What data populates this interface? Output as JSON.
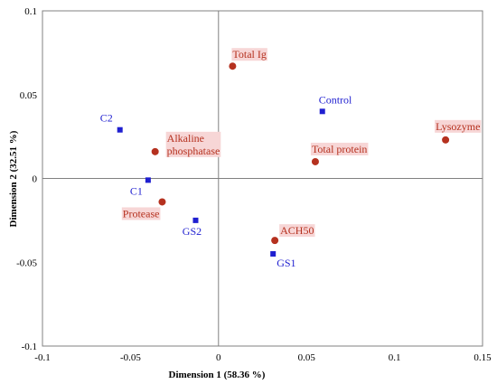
{
  "chart_data": {
    "type": "scatter",
    "title": "",
    "xlabel": "Dimension 1 (58.36 %)",
    "ylabel": "Dimension 2 (32.51 %)",
    "xlim": [
      -0.1,
      0.15
    ],
    "ylim": [
      -0.1,
      0.1
    ],
    "xticks": [
      "-0.1",
      "-0.05",
      "0",
      "0.05",
      "0.1",
      "0.15"
    ],
    "yticks": [
      "-0.1",
      "-0.05",
      "0",
      "0.05",
      "0.1"
    ],
    "grid": false,
    "legend": "none",
    "series": [
      {
        "color": "#1f1fd0",
        "marker": "square",
        "points": [
          {
            "label": "C2",
            "x": -0.056,
            "y": 0.029
          },
          {
            "label": "C1",
            "x": -0.04,
            "y": -0.001
          },
          {
            "label": "GS2",
            "x": -0.013,
            "y": -0.025
          },
          {
            "label": "GS1",
            "x": 0.031,
            "y": -0.045
          },
          {
            "label": "Control",
            "x": 0.059,
            "y": 0.04
          }
        ]
      },
      {
        "color": "#b5311f",
        "marker": "circle",
        "points": [
          {
            "label": "Total Ig",
            "x": 0.008,
            "y": 0.067
          },
          {
            "label": "Alkaline\nphosphatase",
            "x": -0.036,
            "y": 0.016
          },
          {
            "label": "Protease",
            "x": -0.032,
            "y": -0.014
          },
          {
            "label": "ACH50",
            "x": 0.032,
            "y": -0.037
          },
          {
            "label": "Total protein",
            "x": 0.055,
            "y": 0.01
          },
          {
            "label": "Lysozyme",
            "x": 0.129,
            "y": 0.023
          }
        ]
      }
    ],
    "colors": {
      "variables_label": "#b5311f",
      "groups_label": "#1f1fd0",
      "label_highlight": "#f7d6d6"
    }
  }
}
